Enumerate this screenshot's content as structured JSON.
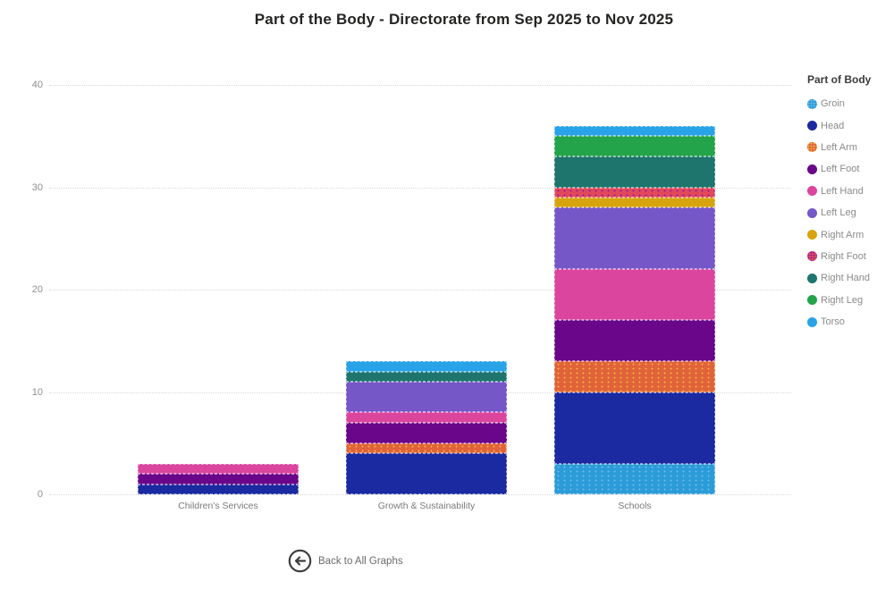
{
  "page": {
    "background": "#ffffff"
  },
  "chart_data": {
    "type": "bar",
    "stacked": true,
    "title": "Part of the Body - Directorate from Sep 2025 to Nov 2025",
    "categories": [
      "Children's Services",
      "Growth & Sustainability",
      "Schools"
    ],
    "series": [
      {
        "name": "Groin",
        "color": "#2B9CD8",
        "pattern_dot_color": "#6FBCE8",
        "values": [
          0,
          0,
          3
        ]
      },
      {
        "name": "Head",
        "color": "#1B2AA0",
        "values": [
          1,
          4,
          7
        ]
      },
      {
        "name": "Left Arm",
        "color": "#E0633A",
        "pattern_dot_color": "#F5B33F",
        "values": [
          0,
          1,
          3
        ]
      },
      {
        "name": "Left Foot",
        "color": "#69068A",
        "values": [
          1,
          2,
          4
        ]
      },
      {
        "name": "Left Hand",
        "color": "#DB459E",
        "values": [
          1,
          1,
          5
        ]
      },
      {
        "name": "Left Leg",
        "color": "#7657C8",
        "values": [
          0,
          3,
          6
        ]
      },
      {
        "name": "Right Arm",
        "color": "#D7A40F",
        "values": [
          0,
          0,
          1
        ]
      },
      {
        "name": "Right Foot",
        "color": "#E2475A",
        "pattern_dot_color": "#8A1FA8",
        "values": [
          0,
          0,
          1
        ]
      },
      {
        "name": "Right Hand",
        "color": "#1E756D",
        "values": [
          0,
          1,
          3
        ]
      },
      {
        "name": "Right Leg",
        "color": "#23A44A",
        "values": [
          0,
          0,
          2
        ]
      },
      {
        "name": "Torso",
        "color": "#29A3E8",
        "values": [
          0,
          1,
          1
        ]
      }
    ],
    "totals": {
      "Children's Services": 3,
      "Growth & Sustainability": 13,
      "Schools": 36
    },
    "ylim": [
      0,
      40
    ],
    "yticks": [
      0,
      10,
      20,
      30,
      40
    ],
    "xlabel": "",
    "ylabel": "",
    "grid": "dotted-horizontal",
    "legend_title": "Part of Body",
    "legend_position": "right",
    "gridline_color": "#d9d9d9",
    "axis_label_color": "#8f8f8f"
  },
  "back_button": {
    "label": "Back to All Graphs"
  }
}
